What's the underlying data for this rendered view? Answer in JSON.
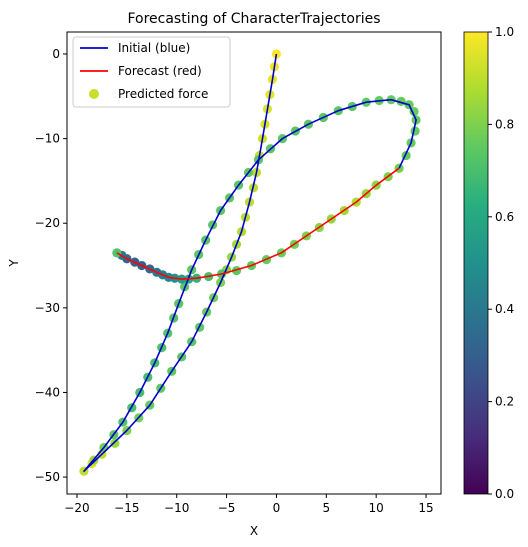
{
  "chart_data": {
    "type": "scatter",
    "title": "Forecasting of CharacterTrajectories",
    "xlabel": "X",
    "ylabel": "Y",
    "xlim": [
      -21,
      16.5
    ],
    "ylim": [
      -52,
      2.6
    ],
    "xticks": [
      -20,
      -15,
      -10,
      -5,
      0,
      5,
      10,
      15
    ],
    "yticks": [
      0,
      -10,
      -20,
      -30,
      -40,
      -50
    ],
    "grid": false,
    "legend_position": "top-left",
    "legend": [
      {
        "label": "Initial (blue)",
        "kind": "line",
        "color": "#0000cc"
      },
      {
        "label": "Forecast (red)",
        "kind": "line",
        "color": "#ff0000"
      },
      {
        "label": "Predicted force",
        "kind": "marker",
        "color": "#c8df2a"
      }
    ],
    "colorbar": {
      "range": [
        0,
        1
      ],
      "ticks": [
        "0.0",
        "0.2",
        "0.4",
        "0.6",
        "0.8",
        "1.0"
      ],
      "colormap": "viridis"
    },
    "series": [
      {
        "name": "Initial (blue)",
        "color": "#0000cc",
        "points": [
          [
            0,
            0
          ],
          [
            -0.4,
            -3
          ],
          [
            -0.9,
            -6.5
          ],
          [
            -1.4,
            -10
          ],
          [
            -2,
            -14
          ],
          [
            -2.7,
            -17.5
          ],
          [
            -3.5,
            -21
          ],
          [
            -4.5,
            -24
          ],
          [
            -5.6,
            -27
          ],
          [
            -7,
            -30.5
          ],
          [
            -8.5,
            -34
          ],
          [
            -10.5,
            -37.5
          ],
          [
            -12.7,
            -41.5
          ],
          [
            -15,
            -44.5
          ],
          [
            -17.5,
            -47.3
          ],
          [
            -19.3,
            -49.3
          ],
          [
            -17.3,
            -46.5
          ],
          [
            -15.4,
            -43.5
          ],
          [
            -13.7,
            -40
          ],
          [
            -12.2,
            -36.5
          ],
          [
            -10.9,
            -33
          ],
          [
            -9.8,
            -29.5
          ],
          [
            -8.5,
            -25.5
          ],
          [
            -7.1,
            -22
          ],
          [
            -5.6,
            -18.5
          ],
          [
            -3.8,
            -15.5
          ],
          [
            -1.8,
            -12.5
          ],
          [
            0.6,
            -10
          ],
          [
            3.2,
            -8.3
          ],
          [
            6.2,
            -6.7
          ],
          [
            9,
            -5.7
          ],
          [
            11.5,
            -5.4
          ],
          [
            13.3,
            -6
          ],
          [
            14,
            -7.8
          ],
          [
            13.5,
            -10.5
          ],
          [
            12.3,
            -13.5
          ]
        ]
      },
      {
        "name": "Forecast (red)",
        "color": "#ff0000",
        "points": [
          [
            12.3,
            -13.5
          ],
          [
            10,
            -15.5
          ],
          [
            8,
            -17.5
          ],
          [
            5.5,
            -19.5
          ],
          [
            3,
            -21.5
          ],
          [
            0.5,
            -23.5
          ],
          [
            -2.5,
            -25
          ],
          [
            -5.5,
            -26
          ],
          [
            -8,
            -26.5
          ],
          [
            -9.5,
            -26.6
          ],
          [
            -10.8,
            -26.4
          ],
          [
            -12,
            -25.8
          ],
          [
            -13.5,
            -25
          ],
          [
            -15,
            -24.2
          ],
          [
            -16,
            -23.5
          ]
        ]
      }
    ],
    "markers": [
      {
        "x": 0,
        "y": 0,
        "v": 1.0
      },
      {
        "x": -0.2,
        "y": -1.5,
        "v": 0.98
      },
      {
        "x": -0.4,
        "y": -3,
        "v": 0.97
      },
      {
        "x": -0.65,
        "y": -4.8,
        "v": 0.96
      },
      {
        "x": -0.9,
        "y": -6.5,
        "v": 0.95
      },
      {
        "x": -1.15,
        "y": -8.3,
        "v": 0.94
      },
      {
        "x": -1.4,
        "y": -10,
        "v": 0.93
      },
      {
        "x": -1.7,
        "y": -12,
        "v": 0.92
      },
      {
        "x": -2,
        "y": -14,
        "v": 0.91
      },
      {
        "x": -2.3,
        "y": -15.8,
        "v": 0.9
      },
      {
        "x": -2.7,
        "y": -17.5,
        "v": 0.9
      },
      {
        "x": -3.1,
        "y": -19.3,
        "v": 0.89
      },
      {
        "x": -3.5,
        "y": -21,
        "v": 0.88
      },
      {
        "x": -4,
        "y": -22.5,
        "v": 0.86
      },
      {
        "x": -4.5,
        "y": -24,
        "v": 0.84
      },
      {
        "x": -5,
        "y": -25.5,
        "v": 0.82
      },
      {
        "x": -5.6,
        "y": -27,
        "v": 0.8
      },
      {
        "x": -6.3,
        "y": -28.8,
        "v": 0.78
      },
      {
        "x": -7,
        "y": -30.5,
        "v": 0.76
      },
      {
        "x": -7.7,
        "y": -32.3,
        "v": 0.75
      },
      {
        "x": -8.5,
        "y": -34,
        "v": 0.74
      },
      {
        "x": -9.5,
        "y": -35.8,
        "v": 0.74
      },
      {
        "x": -10.5,
        "y": -37.5,
        "v": 0.74
      },
      {
        "x": -11.6,
        "y": -39.5,
        "v": 0.75
      },
      {
        "x": -12.7,
        "y": -41.5,
        "v": 0.76
      },
      {
        "x": -13.8,
        "y": -43,
        "v": 0.78
      },
      {
        "x": -15,
        "y": -44.5,
        "v": 0.8
      },
      {
        "x": -16.2,
        "y": -46,
        "v": 0.84
      },
      {
        "x": -17.5,
        "y": -47.3,
        "v": 0.9
      },
      {
        "x": -18.5,
        "y": -48.4,
        "v": 0.95
      },
      {
        "x": -19.3,
        "y": -49.3,
        "v": 0.9
      },
      {
        "x": -18.3,
        "y": -48,
        "v": 0.85
      },
      {
        "x": -17.3,
        "y": -46.5,
        "v": 0.78
      },
      {
        "x": -16.3,
        "y": -45,
        "v": 0.74
      },
      {
        "x": -15.4,
        "y": -43.5,
        "v": 0.72
      },
      {
        "x": -14.5,
        "y": -41.8,
        "v": 0.7
      },
      {
        "x": -13.7,
        "y": -40,
        "v": 0.7
      },
      {
        "x": -12.9,
        "y": -38.2,
        "v": 0.7
      },
      {
        "x": -12.2,
        "y": -36.5,
        "v": 0.7
      },
      {
        "x": -11.5,
        "y": -34.7,
        "v": 0.71
      },
      {
        "x": -10.9,
        "y": -33,
        "v": 0.72
      },
      {
        "x": -10.3,
        "y": -31.2,
        "v": 0.73
      },
      {
        "x": -9.8,
        "y": -29.5,
        "v": 0.74
      },
      {
        "x": -9.2,
        "y": -27.5,
        "v": 0.74
      },
      {
        "x": -8.5,
        "y": -25.5,
        "v": 0.74
      },
      {
        "x": -7.8,
        "y": -23.7,
        "v": 0.74
      },
      {
        "x": -7.1,
        "y": -22,
        "v": 0.74
      },
      {
        "x": -6.4,
        "y": -20.2,
        "v": 0.74
      },
      {
        "x": -5.6,
        "y": -18.5,
        "v": 0.74
      },
      {
        "x": -4.7,
        "y": -17,
        "v": 0.74
      },
      {
        "x": -3.8,
        "y": -15.5,
        "v": 0.74
      },
      {
        "x": -2.8,
        "y": -14,
        "v": 0.74
      },
      {
        "x": -1.8,
        "y": -12.5,
        "v": 0.74
      },
      {
        "x": -0.6,
        "y": -11.2,
        "v": 0.74
      },
      {
        "x": 0.6,
        "y": -10,
        "v": 0.74
      },
      {
        "x": 1.9,
        "y": -9.1,
        "v": 0.74
      },
      {
        "x": 3.2,
        "y": -8.3,
        "v": 0.74
      },
      {
        "x": 4.7,
        "y": -7.5,
        "v": 0.74
      },
      {
        "x": 6.2,
        "y": -6.7,
        "v": 0.74
      },
      {
        "x": 7.6,
        "y": -6.2,
        "v": 0.74
      },
      {
        "x": 9,
        "y": -5.7,
        "v": 0.75
      },
      {
        "x": 10.3,
        "y": -5.5,
        "v": 0.76
      },
      {
        "x": 11.5,
        "y": -5.4,
        "v": 0.76
      },
      {
        "x": 12.5,
        "y": -5.6,
        "v": 0.76
      },
      {
        "x": 13.3,
        "y": -6,
        "v": 0.76
      },
      {
        "x": 13.8,
        "y": -6.8,
        "v": 0.76
      },
      {
        "x": 14,
        "y": -7.8,
        "v": 0.76
      },
      {
        "x": 13.9,
        "y": -9.1,
        "v": 0.76
      },
      {
        "x": 13.5,
        "y": -10.5,
        "v": 0.76
      },
      {
        "x": 13,
        "y": -12,
        "v": 0.76
      },
      {
        "x": 12.3,
        "y": -13.5,
        "v": 0.78
      },
      {
        "x": 11.2,
        "y": -14.5,
        "v": 0.8
      },
      {
        "x": 10,
        "y": -15.5,
        "v": 0.82
      },
      {
        "x": 9,
        "y": -16.5,
        "v": 0.84
      },
      {
        "x": 8,
        "y": -17.5,
        "v": 0.88
      },
      {
        "x": 6.8,
        "y": -18.5,
        "v": 0.86
      },
      {
        "x": 5.5,
        "y": -19.5,
        "v": 0.84
      },
      {
        "x": 4.3,
        "y": -20.5,
        "v": 0.82
      },
      {
        "x": 3,
        "y": -21.5,
        "v": 0.8
      },
      {
        "x": 1.8,
        "y": -22.5,
        "v": 0.78
      },
      {
        "x": 0.5,
        "y": -23.5,
        "v": 0.77
      },
      {
        "x": -1,
        "y": -24.3,
        "v": 0.76
      },
      {
        "x": -2.5,
        "y": -25,
        "v": 0.75
      },
      {
        "x": -4,
        "y": -25.6,
        "v": 0.74
      },
      {
        "x": -5.5,
        "y": -26,
        "v": 0.72
      },
      {
        "x": -6.8,
        "y": -26.3,
        "v": 0.7
      },
      {
        "x": -8,
        "y": -26.5,
        "v": 0.65
      },
      {
        "x": -8.8,
        "y": -26.6,
        "v": 0.6
      },
      {
        "x": -9.5,
        "y": -26.6,
        "v": 0.55
      },
      {
        "x": -10.2,
        "y": -26.5,
        "v": 0.5
      },
      {
        "x": -10.8,
        "y": -26.4,
        "v": 0.46
      },
      {
        "x": -11.4,
        "y": -26.1,
        "v": 0.42
      },
      {
        "x": -12,
        "y": -25.8,
        "v": 0.38
      },
      {
        "x": -12.7,
        "y": -25.4,
        "v": 0.33
      },
      {
        "x": -13.5,
        "y": -25,
        "v": 0.3
      },
      {
        "x": -14.2,
        "y": -24.6,
        "v": 0.3
      },
      {
        "x": -15,
        "y": -24.2,
        "v": 0.32
      },
      {
        "x": -15.5,
        "y": -23.8,
        "v": 0.4
      },
      {
        "x": -16,
        "y": -23.5,
        "v": 0.72
      }
    ]
  }
}
